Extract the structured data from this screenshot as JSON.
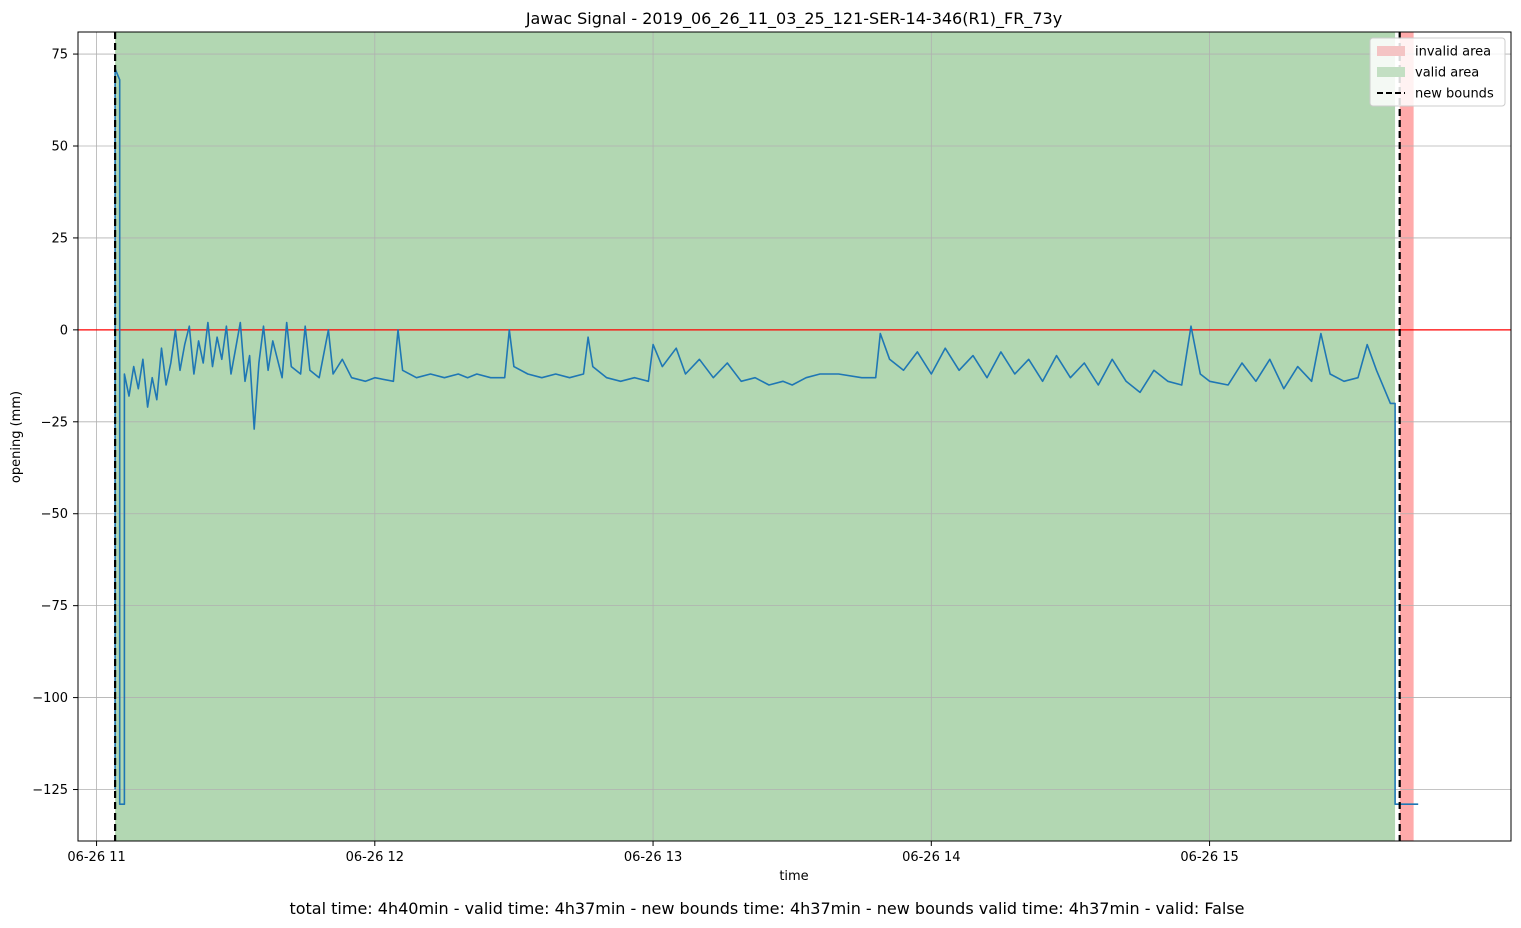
{
  "chart_data": {
    "type": "line",
    "title": "Jawac Signal - 2019_06_26_11_03_25_121-SER-14-346(R1)_FR_73y",
    "xlabel": "time",
    "ylabel": "opening (mm)",
    "footer": "total time: 4h40min - valid time: 4h37min - new bounds time: 4h37min - new bounds valid time: 4h37min - valid: False",
    "xlim": [
      "2019-06-26 10:56",
      "2019-06-26 16:05"
    ],
    "ylim": [
      -139,
      81
    ],
    "x_ticks": [
      {
        "t": "2019-06-26 11:00",
        "label": "06-26 11"
      },
      {
        "t": "2019-06-26 12:00",
        "label": "06-26 12"
      },
      {
        "t": "2019-06-26 13:00",
        "label": "06-26 13"
      },
      {
        "t": "2019-06-26 14:00",
        "label": "06-26 14"
      },
      {
        "t": "2019-06-26 15:00",
        "label": "06-26 15"
      }
    ],
    "y_ticks": [
      {
        "v": 75,
        "label": "75"
      },
      {
        "v": 50,
        "label": "50"
      },
      {
        "v": 25,
        "label": "25"
      },
      {
        "v": 0,
        "label": "0"
      },
      {
        "v": -25,
        "label": "−25"
      },
      {
        "v": -50,
        "label": "−50"
      },
      {
        "v": -75,
        "label": "−75"
      },
      {
        "v": -100,
        "label": "−100"
      },
      {
        "v": -125,
        "label": "−125"
      }
    ],
    "grid": true,
    "legend_position": "top-right",
    "legend": [
      {
        "label": "invalid area",
        "kind": "patch",
        "color": "#f4c4c4"
      },
      {
        "label": "valid area",
        "kind": "patch",
        "color": "#c3dfc3"
      },
      {
        "label": "new bounds",
        "kind": "dashed-line",
        "color": "#000000"
      }
    ],
    "valid_area": {
      "start": "2019-06-26 11:04",
      "end": "2019-06-26 15:40",
      "color": "#b2d7b2"
    },
    "invalid_area": {
      "start": "2019-06-26 15:41",
      "end": "2019-06-26 15:44",
      "color": "#ffaaaa"
    },
    "new_bounds": [
      "2019-06-26 11:04",
      "2019-06-26 15:41"
    ],
    "reference_line": {
      "value": 0,
      "color": "#ff0000"
    },
    "series_color": "#1f77b4",
    "series": [
      {
        "points": [
          [
            "2019-06-26 11:04",
            -125
          ],
          [
            "2019-06-26 11:04",
            71
          ],
          [
            "2019-06-26 11:05",
            68
          ],
          [
            "2019-06-26 11:05",
            -129
          ],
          [
            "2019-06-26 11:06",
            -129
          ],
          [
            "2019-06-26 11:06",
            -12
          ],
          [
            "2019-06-26 11:07",
            -18
          ],
          [
            "2019-06-26 11:08",
            -10
          ],
          [
            "2019-06-26 11:09",
            -16
          ],
          [
            "2019-06-26 11:10",
            -8
          ],
          [
            "2019-06-26 11:11",
            -21
          ],
          [
            "2019-06-26 11:12",
            -13
          ],
          [
            "2019-06-26 11:13",
            -19
          ],
          [
            "2019-06-26 11:14",
            -5
          ],
          [
            "2019-06-26 11:15",
            -15
          ],
          [
            "2019-06-26 11:16",
            -9
          ],
          [
            "2019-06-26 11:17",
            0
          ],
          [
            "2019-06-26 11:18",
            -11
          ],
          [
            "2019-06-26 11:19",
            -4
          ],
          [
            "2019-06-26 11:20",
            1
          ],
          [
            "2019-06-26 11:21",
            -12
          ],
          [
            "2019-06-26 11:22",
            -3
          ],
          [
            "2019-06-26 11:23",
            -9
          ],
          [
            "2019-06-26 11:24",
            2
          ],
          [
            "2019-06-26 11:25",
            -10
          ],
          [
            "2019-06-26 11:26",
            -2
          ],
          [
            "2019-06-26 11:27",
            -8
          ],
          [
            "2019-06-26 11:28",
            1
          ],
          [
            "2019-06-26 11:29",
            -12
          ],
          [
            "2019-06-26 11:30",
            -5
          ],
          [
            "2019-06-26 11:31",
            2
          ],
          [
            "2019-06-26 11:32",
            -14
          ],
          [
            "2019-06-26 11:33",
            -7
          ],
          [
            "2019-06-26 11:34",
            -27
          ],
          [
            "2019-06-26 11:35",
            -9
          ],
          [
            "2019-06-26 11:36",
            1
          ],
          [
            "2019-06-26 11:37",
            -11
          ],
          [
            "2019-06-26 11:38",
            -3
          ],
          [
            "2019-06-26 11:40",
            -13
          ],
          [
            "2019-06-26 11:41",
            2
          ],
          [
            "2019-06-26 11:42",
            -10
          ],
          [
            "2019-06-26 11:44",
            -12
          ],
          [
            "2019-06-26 11:45",
            1
          ],
          [
            "2019-06-26 11:46",
            -11
          ],
          [
            "2019-06-26 11:48",
            -13
          ],
          [
            "2019-06-26 11:50",
            0
          ],
          [
            "2019-06-26 11:51",
            -12
          ],
          [
            "2019-06-26 11:53",
            -8
          ],
          [
            "2019-06-26 11:55",
            -13
          ],
          [
            "2019-06-26 11:58",
            -14
          ],
          [
            "2019-06-26 12:00",
            -13
          ],
          [
            "2019-06-26 12:04",
            -14
          ],
          [
            "2019-06-26 12:05",
            0
          ],
          [
            "2019-06-26 12:06",
            -11
          ],
          [
            "2019-06-26 12:09",
            -13
          ],
          [
            "2019-06-26 12:12",
            -12
          ],
          [
            "2019-06-26 12:15",
            -13
          ],
          [
            "2019-06-26 12:18",
            -12
          ],
          [
            "2019-06-26 12:20",
            -13
          ],
          [
            "2019-06-26 12:22",
            -12
          ],
          [
            "2019-06-26 12:25",
            -13
          ],
          [
            "2019-06-26 12:28",
            -13
          ],
          [
            "2019-06-26 12:29",
            0
          ],
          [
            "2019-06-26 12:30",
            -10
          ],
          [
            "2019-06-26 12:33",
            -12
          ],
          [
            "2019-06-26 12:36",
            -13
          ],
          [
            "2019-06-26 12:39",
            -12
          ],
          [
            "2019-06-26 12:42",
            -13
          ],
          [
            "2019-06-26 12:45",
            -12
          ],
          [
            "2019-06-26 12:46",
            -2
          ],
          [
            "2019-06-26 12:47",
            -10
          ],
          [
            "2019-06-26 12:50",
            -13
          ],
          [
            "2019-06-26 12:53",
            -14
          ],
          [
            "2019-06-26 12:56",
            -13
          ],
          [
            "2019-06-26 12:59",
            -14
          ],
          [
            "2019-06-26 13:00",
            -4
          ],
          [
            "2019-06-26 13:02",
            -10
          ],
          [
            "2019-06-26 13:05",
            -5
          ],
          [
            "2019-06-26 13:07",
            -12
          ],
          [
            "2019-06-26 13:10",
            -8
          ],
          [
            "2019-06-26 13:13",
            -13
          ],
          [
            "2019-06-26 13:16",
            -9
          ],
          [
            "2019-06-26 13:19",
            -14
          ],
          [
            "2019-06-26 13:22",
            -13
          ],
          [
            "2019-06-26 13:25",
            -15
          ],
          [
            "2019-06-26 13:28",
            -14
          ],
          [
            "2019-06-26 13:30",
            -15
          ],
          [
            "2019-06-26 13:33",
            -13
          ],
          [
            "2019-06-26 13:36",
            -12
          ],
          [
            "2019-06-26 13:40",
            -12
          ],
          [
            "2019-06-26 13:45",
            -13
          ],
          [
            "2019-06-26 13:48",
            -13
          ],
          [
            "2019-06-26 13:49",
            -1
          ],
          [
            "2019-06-26 13:51",
            -8
          ],
          [
            "2019-06-26 13:54",
            -11
          ],
          [
            "2019-06-26 13:57",
            -6
          ],
          [
            "2019-06-26 14:00",
            -12
          ],
          [
            "2019-06-26 14:03",
            -5
          ],
          [
            "2019-06-26 14:06",
            -11
          ],
          [
            "2019-06-26 14:09",
            -7
          ],
          [
            "2019-06-26 14:12",
            -13
          ],
          [
            "2019-06-26 14:15",
            -6
          ],
          [
            "2019-06-26 14:18",
            -12
          ],
          [
            "2019-06-26 14:21",
            -8
          ],
          [
            "2019-06-26 14:24",
            -14
          ],
          [
            "2019-06-26 14:27",
            -7
          ],
          [
            "2019-06-26 14:30",
            -13
          ],
          [
            "2019-06-26 14:33",
            -9
          ],
          [
            "2019-06-26 14:36",
            -15
          ],
          [
            "2019-06-26 14:39",
            -8
          ],
          [
            "2019-06-26 14:42",
            -14
          ],
          [
            "2019-06-26 14:45",
            -17
          ],
          [
            "2019-06-26 14:48",
            -11
          ],
          [
            "2019-06-26 14:51",
            -14
          ],
          [
            "2019-06-26 14:54",
            -15
          ],
          [
            "2019-06-26 14:56",
            1
          ],
          [
            "2019-06-26 14:58",
            -12
          ],
          [
            "2019-06-26 15:00",
            -14
          ],
          [
            "2019-06-26 15:04",
            -15
          ],
          [
            "2019-06-26 15:07",
            -9
          ],
          [
            "2019-06-26 15:10",
            -14
          ],
          [
            "2019-06-26 15:13",
            -8
          ],
          [
            "2019-06-26 15:16",
            -16
          ],
          [
            "2019-06-26 15:19",
            -10
          ],
          [
            "2019-06-26 15:22",
            -14
          ],
          [
            "2019-06-26 15:24",
            -1
          ],
          [
            "2019-06-26 15:26",
            -12
          ],
          [
            "2019-06-26 15:29",
            -14
          ],
          [
            "2019-06-26 15:32",
            -13
          ],
          [
            "2019-06-26 15:34",
            -4
          ],
          [
            "2019-06-26 15:36",
            -11
          ],
          [
            "2019-06-26 15:39",
            -20
          ],
          [
            "2019-06-26 15:40",
            -20
          ],
          [
            "2019-06-26 15:40",
            -129
          ],
          [
            "2019-06-26 15:45",
            -129
          ]
        ]
      }
    ]
  }
}
